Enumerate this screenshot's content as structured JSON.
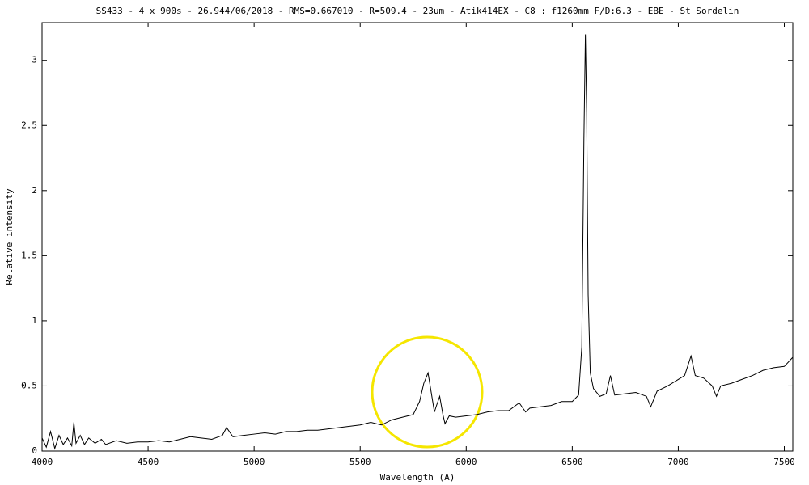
{
  "chart_data": {
    "type": "line",
    "title": "SS433 - 4 x 900s - 26.944/06/2018 - RMS=0.667010 - R=509.4 - 23um - Atik414EX - C8 : f1260mm  F/D:6.3 - EBE - St Sordelin",
    "xlabel": "Wavelength (A)",
    "ylabel": "Relative intensity",
    "color": "#000000",
    "xlim": [
      4000,
      7540
    ],
    "ylim": [
      0,
      3.29
    ],
    "xticks": [
      4000,
      4500,
      5000,
      5500,
      6000,
      6500,
      7000,
      7500
    ],
    "yticks": [
      0,
      0.5,
      1,
      1.5,
      2,
      2.5,
      3
    ],
    "grid": false,
    "x": [
      4000,
      4020,
      4040,
      4060,
      4080,
      4100,
      4120,
      4140,
      4150,
      4160,
      4180,
      4200,
      4220,
      4250,
      4280,
      4300,
      4350,
      4400,
      4450,
      4500,
      4550,
      4600,
      4650,
      4700,
      4750,
      4800,
      4850,
      4870,
      4900,
      4950,
      5000,
      5050,
      5100,
      5150,
      5200,
      5250,
      5300,
      5350,
      5400,
      5450,
      5500,
      5550,
      5600,
      5650,
      5700,
      5750,
      5780,
      5800,
      5820,
      5835,
      5850,
      5860,
      5875,
      5890,
      5900,
      5920,
      5950,
      6000,
      6050,
      6100,
      6150,
      6200,
      6250,
      6280,
      6300,
      6350,
      6400,
      6450,
      6500,
      6530,
      6545,
      6555,
      6562,
      6568,
      6575,
      6585,
      6600,
      6630,
      6660,
      6680,
      6700,
      6750,
      6800,
      6850,
      6870,
      6900,
      6950,
      7000,
      7030,
      7060,
      7080,
      7120,
      7160,
      7180,
      7200,
      7250,
      7300,
      7350,
      7400,
      7450,
      7500,
      7540
    ],
    "values": [
      0.1,
      0.03,
      0.15,
      0.02,
      0.12,
      0.05,
      0.1,
      0.04,
      0.22,
      0.06,
      0.12,
      0.05,
      0.1,
      0.06,
      0.09,
      0.05,
      0.08,
      0.06,
      0.07,
      0.07,
      0.08,
      0.07,
      0.09,
      0.11,
      0.1,
      0.09,
      0.12,
      0.18,
      0.11,
      0.12,
      0.13,
      0.14,
      0.13,
      0.15,
      0.15,
      0.16,
      0.16,
      0.17,
      0.18,
      0.19,
      0.2,
      0.22,
      0.2,
      0.24,
      0.26,
      0.28,
      0.38,
      0.52,
      0.6,
      0.45,
      0.3,
      0.35,
      0.42,
      0.28,
      0.21,
      0.27,
      0.26,
      0.27,
      0.28,
      0.3,
      0.31,
      0.31,
      0.37,
      0.3,
      0.33,
      0.34,
      0.35,
      0.38,
      0.38,
      0.43,
      0.8,
      2.4,
      3.2,
      2.6,
      1.2,
      0.6,
      0.48,
      0.42,
      0.44,
      0.58,
      0.43,
      0.44,
      0.45,
      0.42,
      0.34,
      0.46,
      0.5,
      0.55,
      0.58,
      0.73,
      0.58,
      0.56,
      0.5,
      0.42,
      0.5,
      0.52,
      0.55,
      0.58,
      0.62,
      0.64,
      0.65,
      0.72
    ]
  }
}
